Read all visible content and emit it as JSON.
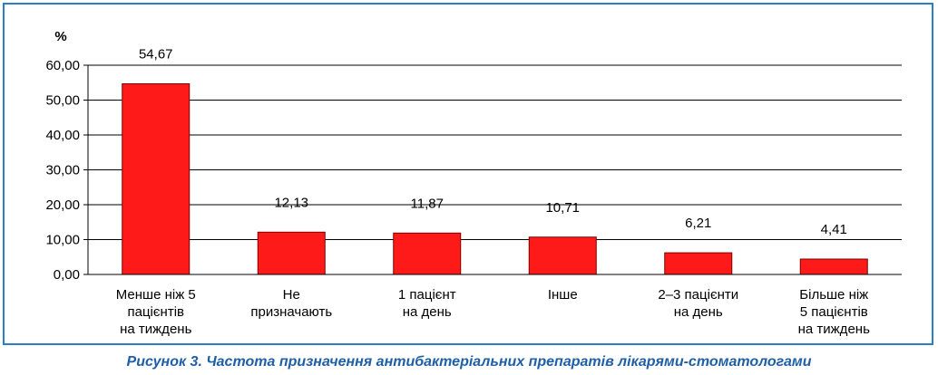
{
  "chart_data": {
    "type": "bar",
    "ylabel": "%",
    "ylim": [
      0,
      60
    ],
    "yticks": [
      0,
      10,
      20,
      30,
      40,
      50,
      60
    ],
    "ytick_labels": [
      "0,00",
      "10,00",
      "20,00",
      "30,00",
      "40,00",
      "50,00",
      "60,00"
    ],
    "categories": [
      [
        "Менше ніж 5",
        "пацієнтів",
        "на тиждень"
      ],
      [
        "Не",
        "призначають"
      ],
      [
        "1 пацієнт",
        "на день"
      ],
      [
        "Інше"
      ],
      [
        "2–3 пацієнти",
        "на день"
      ],
      [
        "Більше ніж",
        "5 пацієнтів",
        "на тиждень"
      ]
    ],
    "values": [
      54.67,
      12.13,
      11.87,
      10.71,
      6.21,
      4.41
    ],
    "value_labels": [
      "54,67",
      "12,13",
      "11,87",
      "10,71",
      "6,21",
      "4,41"
    ],
    "grid": true,
    "bar_color": "#ff1a1a",
    "bar_edge_color": "#7a0000"
  },
  "caption": "Рисунок 3. Частота призначення антибактеріальних препаратів лікарями-стоматологами",
  "colors": {
    "frame": "#2a7fc1",
    "caption": "#1f5fa8"
  }
}
